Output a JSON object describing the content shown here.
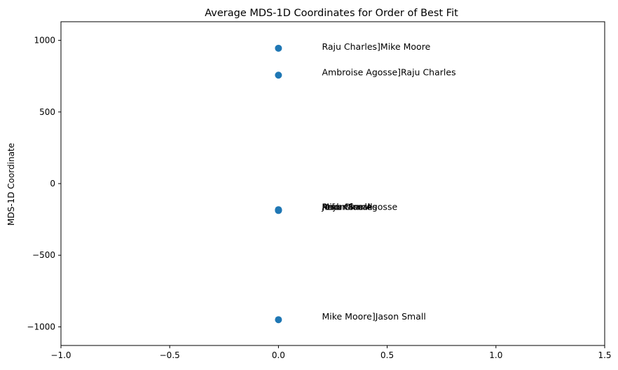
{
  "chart_data": {
    "type": "scatter",
    "title": "Average MDS-1D Coordinates for Order of Best Fit",
    "xlabel": "",
    "ylabel": "MDS-1D Coordinate",
    "xlim": [
      -1.0,
      1.5
    ],
    "ylim": [
      -1130,
      1130
    ],
    "grid": false,
    "legend": "none",
    "marker_color": "#1f77b4",
    "x_ticks": [
      {
        "value": -1.0,
        "label": "−1.0"
      },
      {
        "value": -0.5,
        "label": "−0.5"
      },
      {
        "value": 0.0,
        "label": "0.0"
      },
      {
        "value": 0.5,
        "label": "0.5"
      },
      {
        "value": 1.0,
        "label": "1.0"
      },
      {
        "value": 1.5,
        "label": "1.5"
      }
    ],
    "y_ticks": [
      {
        "value": 1000,
        "label": "1000"
      },
      {
        "value": 500,
        "label": "500"
      },
      {
        "value": 0,
        "label": "0"
      },
      {
        "value": -500,
        "label": "−500"
      },
      {
        "value": -1000,
        "label": "−1000"
      }
    ],
    "points": [
      {
        "x": 0.0,
        "y": 945
      },
      {
        "x": 0.0,
        "y": 757
      },
      {
        "x": 0.0,
        "y": -185
      },
      {
        "x": 0.0,
        "y": -188
      },
      {
        "x": 0.0,
        "y": -182
      },
      {
        "x": 0.0,
        "y": -186
      },
      {
        "x": 0.0,
        "y": -950
      }
    ],
    "annotations": [
      {
        "x": 0.2,
        "y": 955,
        "text": "Raju Charles]Mike Moore"
      },
      {
        "x": 0.2,
        "y": 775,
        "text": "Ambroise Agosse]Raju Charles"
      },
      {
        "x": 0.2,
        "y": -165,
        "text": "Jason Small"
      },
      {
        "x": 0.2,
        "y": -165,
        "text": "Mike Moore"
      },
      {
        "x": 0.2,
        "y": -165,
        "text": "Raju Charles"
      },
      {
        "x": 0.2,
        "y": -165,
        "text": "Ambroise Agosse"
      },
      {
        "x": 0.2,
        "y": -930,
        "text": "Mike Moore]Jason Small"
      }
    ]
  }
}
